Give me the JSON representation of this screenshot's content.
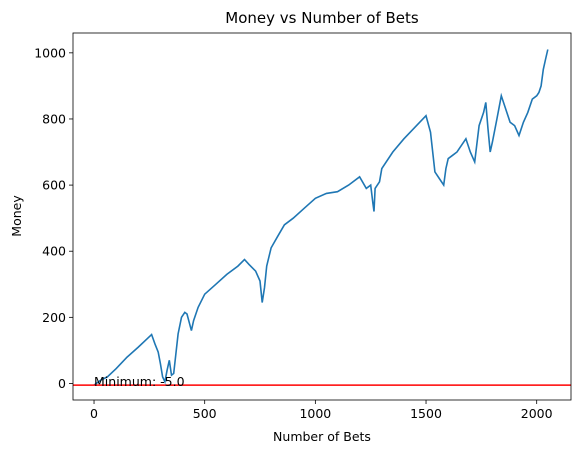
{
  "chart_data": {
    "type": "line",
    "title": "Money vs Number of Bets",
    "xlabel": "Number of Bets",
    "ylabel": "Money",
    "xlim": [
      -95,
      2155
    ],
    "ylim": [
      -50,
      1060
    ],
    "xticks": [
      "0",
      "500",
      "1000",
      "1500",
      "2000"
    ],
    "yticks": [
      "0",
      "200",
      "400",
      "600",
      "800",
      "1000"
    ],
    "grid": false,
    "series": [
      {
        "color": "#1f77b4",
        "x": [
          0,
          30,
          60,
          100,
          150,
          200,
          240,
          260,
          275,
          290,
          300,
          310,
          320,
          330,
          340,
          350,
          360,
          370,
          380,
          395,
          410,
          420,
          430,
          440,
          450,
          470,
          500,
          550,
          600,
          650,
          680,
          700,
          730,
          750,
          760,
          770,
          780,
          800,
          830,
          860,
          900,
          950,
          1000,
          1050,
          1100,
          1150,
          1200,
          1230,
          1250,
          1260,
          1265,
          1270,
          1290,
          1300,
          1350,
          1400,
          1450,
          1500,
          1520,
          1540,
          1560,
          1580,
          1590,
          1600,
          1620,
          1640,
          1660,
          1680,
          1700,
          1720,
          1740,
          1760,
          1770,
          1780,
          1790,
          1800,
          1820,
          1840,
          1860,
          1880,
          1900,
          1920,
          1940,
          1960,
          1980,
          2000,
          2010,
          2020,
          2030,
          2040,
          2050
        ],
        "y": [
          -5,
          10,
          20,
          45,
          80,
          110,
          135,
          148,
          120,
          95,
          60,
          20,
          5,
          40,
          70,
          25,
          30,
          90,
          150,
          200,
          215,
          210,
          185,
          160,
          190,
          230,
          270,
          300,
          330,
          355,
          375,
          360,
          340,
          310,
          245,
          290,
          355,
          410,
          445,
          480,
          500,
          530,
          560,
          575,
          580,
          600,
          625,
          590,
          600,
          545,
          520,
          590,
          610,
          650,
          700,
          740,
          775,
          810,
          760,
          640,
          620,
          600,
          650,
          680,
          690,
          700,
          720,
          740,
          700,
          670,
          780,
          820,
          850,
          770,
          700,
          730,
          800,
          870,
          830,
          790,
          780,
          750,
          790,
          820,
          860,
          870,
          880,
          900,
          950,
          980,
          1010
        ]
      }
    ],
    "reference_line": {
      "y": -5,
      "color": "#ff0000"
    },
    "annotation": {
      "text": "Minimum: -5.0",
      "x": 0,
      "y": -5
    }
  }
}
